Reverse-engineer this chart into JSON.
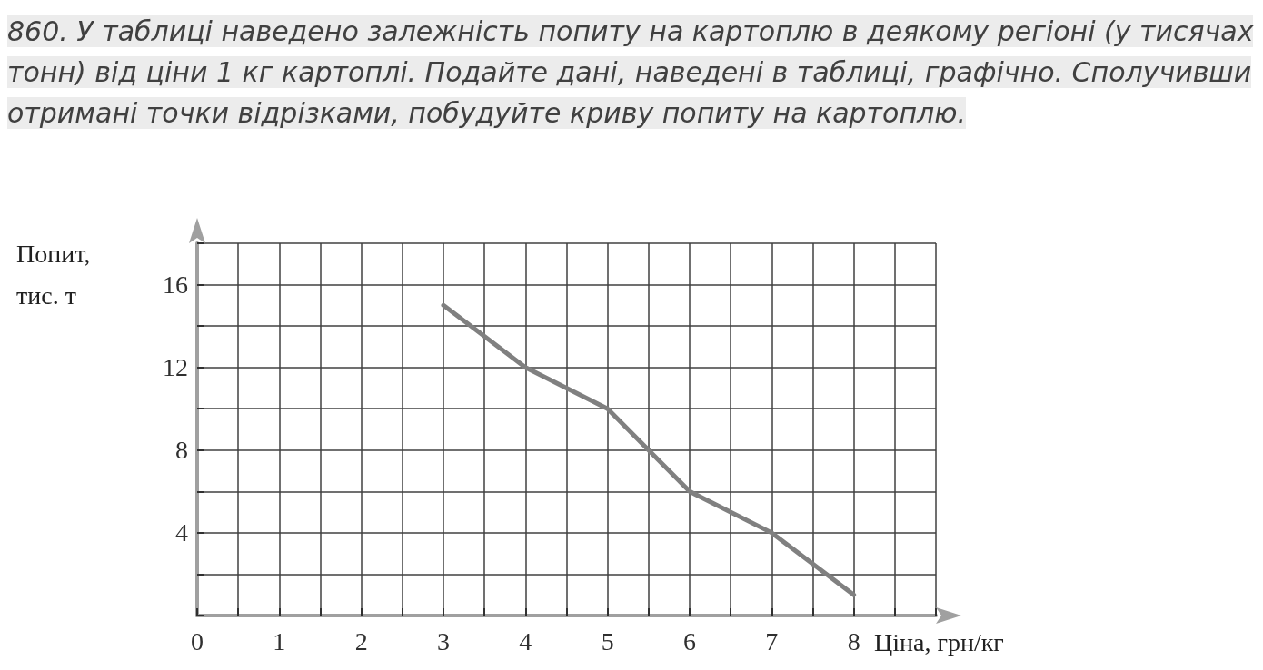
{
  "chart_data": {
    "type": "line",
    "title": "860. У таблиці наведено залежність попиту на картоплю в деякому регіоні (у тисячах тонн) від ціни 1 кг картоплі. Подайте дані, наведені в таблиці, графічно. Сполучивши отримані точки відрізками, побудуйте криву попиту на картоплю.",
    "xlabel": "Ціна, грн/кг",
    "ylabel": "Попит, тис. т",
    "x": [
      3,
      4,
      5,
      6,
      7,
      8
    ],
    "series": [
      {
        "color": "#808080",
        "values": [
          15,
          12,
          10,
          6,
          4,
          1
        ]
      }
    ],
    "xlim": [
      0,
      9
    ],
    "xticks": [
      {
        "value": 0,
        "label": "0"
      },
      {
        "value": 0.5,
        "label": null
      },
      1,
      {
        "value": 1.5,
        "label": null
      },
      2,
      {
        "value": 2.5,
        "label": null
      },
      3,
      {
        "value": 3.5,
        "label": null
      },
      4,
      {
        "value": 4.5,
        "label": null
      },
      5,
      {
        "value": 5.5,
        "label": null
      },
      6,
      {
        "value": 6.5,
        "label": null
      },
      7,
      {
        "value": 7.5,
        "label": null
      },
      8,
      {
        "value": 8.5,
        "label": null
      },
      {
        "value": 9,
        "label": null
      }
    ],
    "ylim": [
      0,
      18
    ],
    "yticks": [
      {
        "value": 0,
        "label": null
      },
      {
        "value": 2,
        "label": null
      },
      4,
      {
        "value": 6,
        "label": null
      },
      8,
      {
        "value": 10,
        "label": null
      },
      12,
      {
        "value": 14,
        "label": null
      },
      16,
      {
        "value": 18,
        "label": null
      }
    ],
    "grid": true,
    "marker": "none",
    "line_style": "solid"
  }
}
